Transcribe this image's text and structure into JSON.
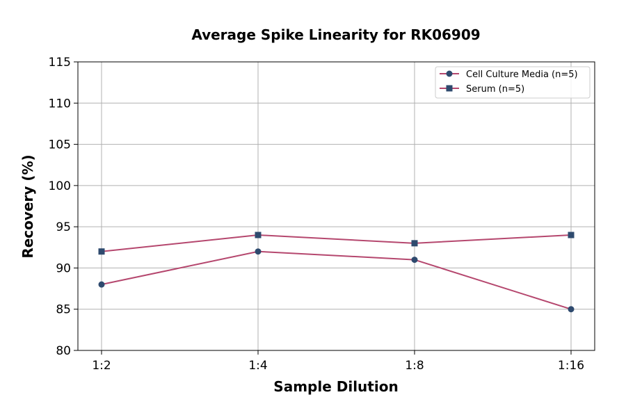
{
  "chart_data": {
    "type": "line",
    "title": "Average Spike Linearity for RK06909",
    "xlabel": "Sample Dilution",
    "ylabel": "Recovery (%)",
    "categories": [
      "1:2",
      "1:4",
      "1:8",
      "1:16"
    ],
    "ylim": [
      80,
      115
    ],
    "yticks": [
      80,
      85,
      90,
      95,
      100,
      105,
      110,
      115
    ],
    "ytick_labels": [
      "80",
      "85",
      "90",
      "95",
      "100",
      "105",
      "110",
      "115"
    ],
    "grid": true,
    "legend_position": "top-right",
    "series": [
      {
        "name": "Cell Culture Media (n=5)",
        "marker": "circle",
        "values": [
          88,
          92,
          91,
          85
        ]
      },
      {
        "name": "Serum (n=5)",
        "marker": "square",
        "values": [
          92,
          94,
          93,
          94
        ]
      }
    ],
    "colors": {
      "line": "#b5476e",
      "marker": "#2e4a6e",
      "grid": "#b0b0b0"
    }
  }
}
